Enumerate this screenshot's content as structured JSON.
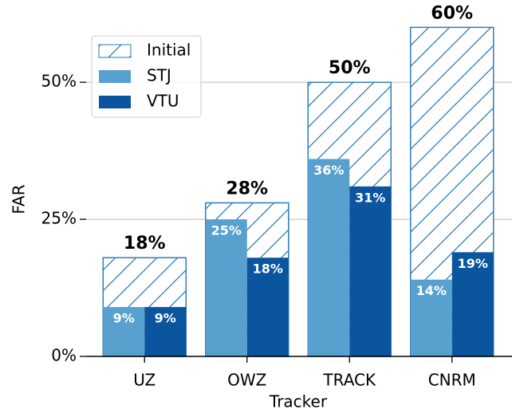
{
  "chart_data": {
    "type": "bar",
    "x_label": "Tracker",
    "y_label": "FAR",
    "categories": [
      "UZ",
      "OWZ",
      "TRACK",
      "CNRM"
    ],
    "series": [
      {
        "name": "Initial",
        "color": "#2a7ab8",
        "hatch": true,
        "values": [
          18,
          28,
          50,
          60
        ],
        "value_labels": [
          "18%",
          "28%",
          "50%",
          "60%"
        ]
      },
      {
        "name": "STJ",
        "color": "#58a1cf",
        "values": [
          9,
          25,
          36,
          14
        ],
        "value_labels": [
          "9%",
          "25%",
          "36%",
          "14%"
        ]
      },
      {
        "name": "VTU",
        "color": "#0b559f",
        "values": [
          9,
          18,
          31,
          19
        ],
        "value_labels": [
          "9%",
          "18%",
          "31%",
          "19%"
        ]
      }
    ],
    "ylim": [
      0,
      65
    ],
    "yticks": [
      {
        "value": 0,
        "label": "0%"
      },
      {
        "value": 25,
        "label": "25%"
      },
      {
        "value": 50,
        "label": "50%"
      }
    ],
    "grid": true
  }
}
